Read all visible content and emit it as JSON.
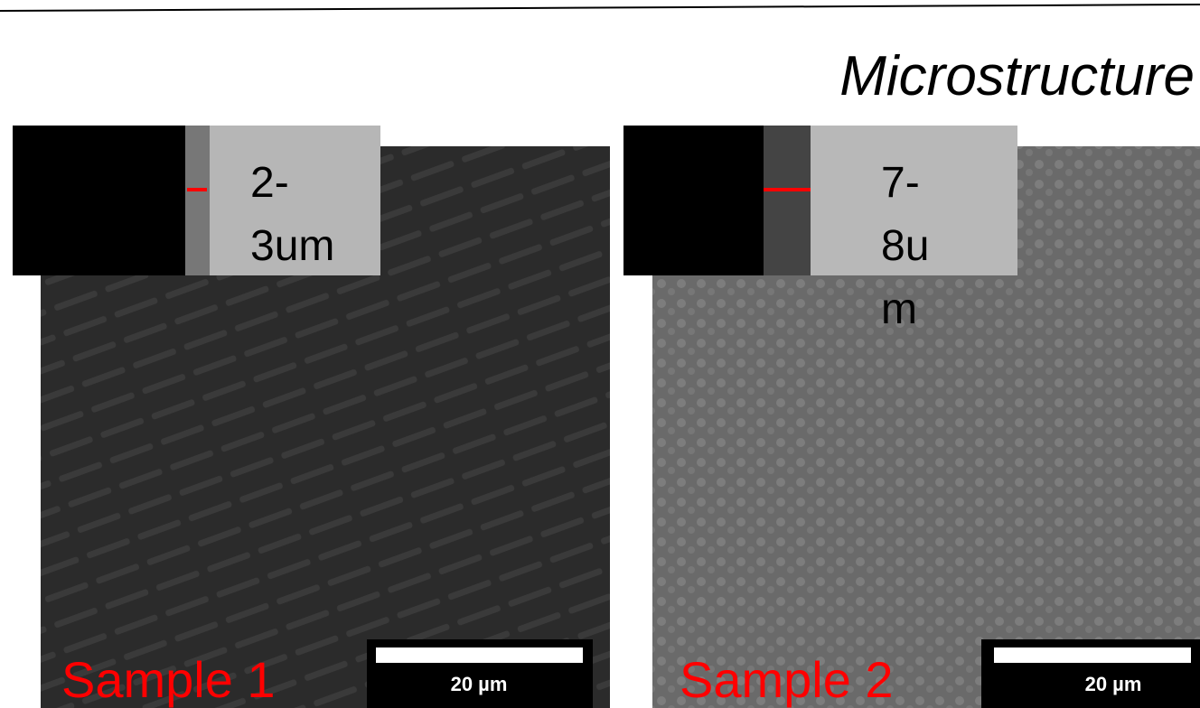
{
  "header": {
    "title": "Microstructure"
  },
  "panels": [
    {
      "label": "Sample 1",
      "inset_label": [
        "2-",
        "3um"
      ],
      "scale_bar": "20 µm"
    },
    {
      "label": "Sample 2",
      "inset_label": [
        "7-",
        "8u",
        "m"
      ],
      "scale_bar": "20 µm"
    }
  ]
}
